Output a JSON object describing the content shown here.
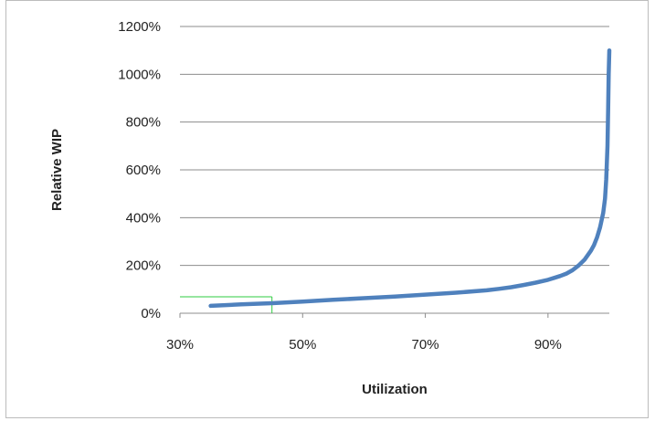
{
  "chart_data": {
    "type": "line",
    "title": "",
    "xlabel": "Utilization",
    "ylabel": "Relative WIP",
    "xlim": [
      30,
      100
    ],
    "ylim": [
      0,
      1200
    ],
    "x_ticks": [
      30,
      50,
      70,
      90
    ],
    "x_tick_labels": [
      "30%",
      "50%",
      "70%",
      "90%"
    ],
    "y_ticks": [
      0,
      200,
      400,
      600,
      800,
      1000,
      1200
    ],
    "y_tick_labels": [
      "0%",
      "200%",
      "400%",
      "600%",
      "800%",
      "1000%",
      "1200%"
    ],
    "grid": "horizontal",
    "legend": "none",
    "series": [
      {
        "color": "#4f81bd",
        "x": [
          35,
          40,
          45,
          50,
          55,
          60,
          65,
          70,
          75,
          80,
          82,
          84,
          86,
          88,
          90,
          91,
          92,
          93,
          94,
          95,
          96,
          97,
          97.5,
          98,
          98.5,
          99,
          99.3,
          99.5,
          99.7,
          99.8,
          99.9,
          100
        ],
        "y": [
          31,
          37,
          42,
          49,
          56,
          63,
          70,
          78,
          86,
          96,
          102,
          109,
          118,
          128,
          140,
          148,
          156,
          166,
          180,
          200,
          225,
          262,
          285,
          318,
          360,
          420,
          480,
          560,
          700,
          850,
          1000,
          1100
        ]
      }
    ],
    "annotation": {
      "color": "#2ecc40",
      "x": 45,
      "y": 42
    }
  }
}
